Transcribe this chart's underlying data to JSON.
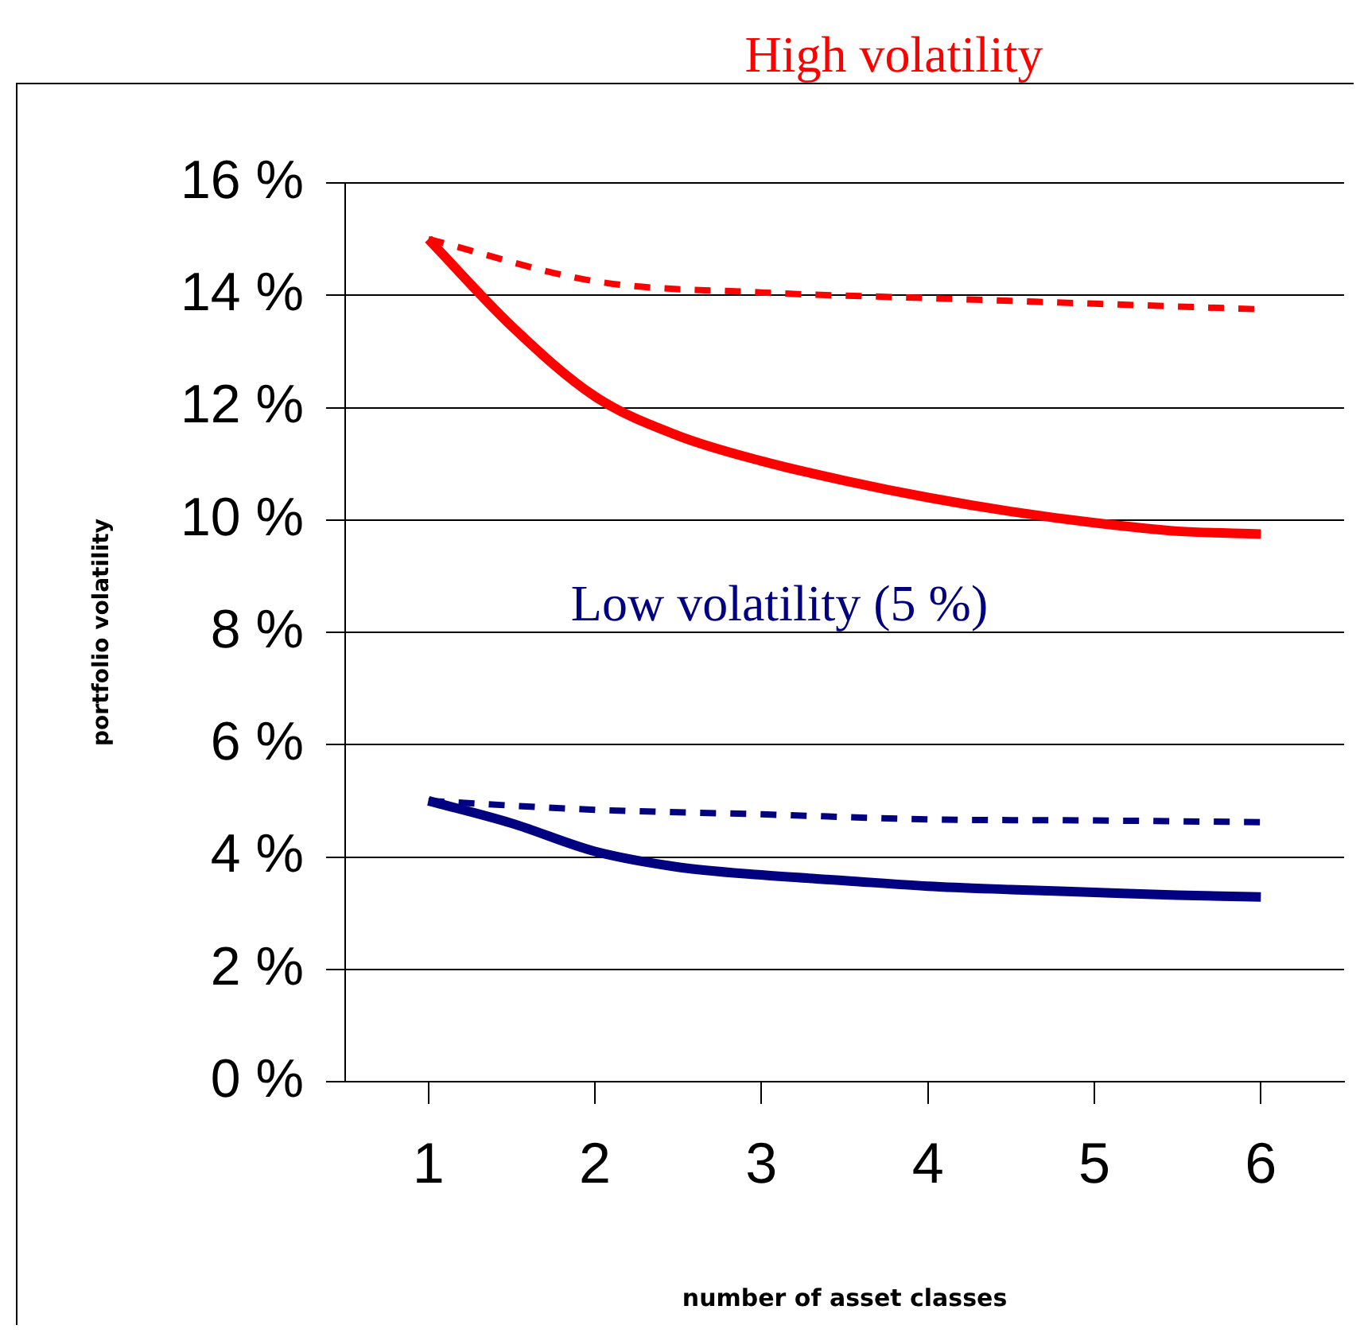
{
  "chart_data": {
    "type": "line",
    "xlabel": "number of asset classes",
    "ylabel": "portfolio volatility",
    "annotations": [
      "High volatility",
      "Low volatility (5 %)"
    ],
    "x": [
      1,
      1.5,
      2,
      2.5,
      3,
      3.5,
      4,
      4.5,
      5,
      5.5,
      6
    ],
    "xlim": [
      0.5,
      6.5
    ],
    "xticks": [
      1,
      2,
      3,
      4,
      5,
      6
    ],
    "ylim": [
      0,
      16
    ],
    "yticks": [
      {
        "value": 0,
        "label": "0 %"
      },
      {
        "value": 2,
        "label": "2 %"
      },
      {
        "value": 4,
        "label": "4 %"
      },
      {
        "value": 6,
        "label": "6 %"
      },
      {
        "value": 8,
        "label": "8 %"
      },
      {
        "value": 10,
        "label": "10 %"
      },
      {
        "value": 12,
        "label": "12 %"
      },
      {
        "value": 14,
        "label": "14 %"
      },
      {
        "value": 16,
        "label": "16 %"
      }
    ],
    "grid": "y",
    "legend": false,
    "marker": "none",
    "series": [
      {
        "color": "#ff0000",
        "line_style": "solid",
        "values": [
          15.0,
          13.45,
          12.2,
          11.5,
          11.05,
          10.7,
          10.4,
          10.15,
          9.95,
          9.8,
          9.75
        ]
      },
      {
        "color": "#ff0000",
        "line_style": "dashed",
        "x": [
          1,
          2,
          3,
          4,
          5,
          6
        ],
        "values": [
          15.0,
          14.25,
          14.05,
          13.95,
          13.85,
          13.75
        ]
      },
      {
        "color": "#000080",
        "line_style": "solid",
        "values": [
          5.0,
          4.6,
          4.1,
          3.82,
          3.68,
          3.58,
          3.48,
          3.42,
          3.37,
          3.32,
          3.29
        ]
      },
      {
        "color": "#000080",
        "line_style": "dashed",
        "x": [
          1,
          2,
          3,
          4,
          5,
          6
        ],
        "values": [
          5.0,
          4.84,
          4.76,
          4.67,
          4.65,
          4.62
        ]
      }
    ]
  }
}
